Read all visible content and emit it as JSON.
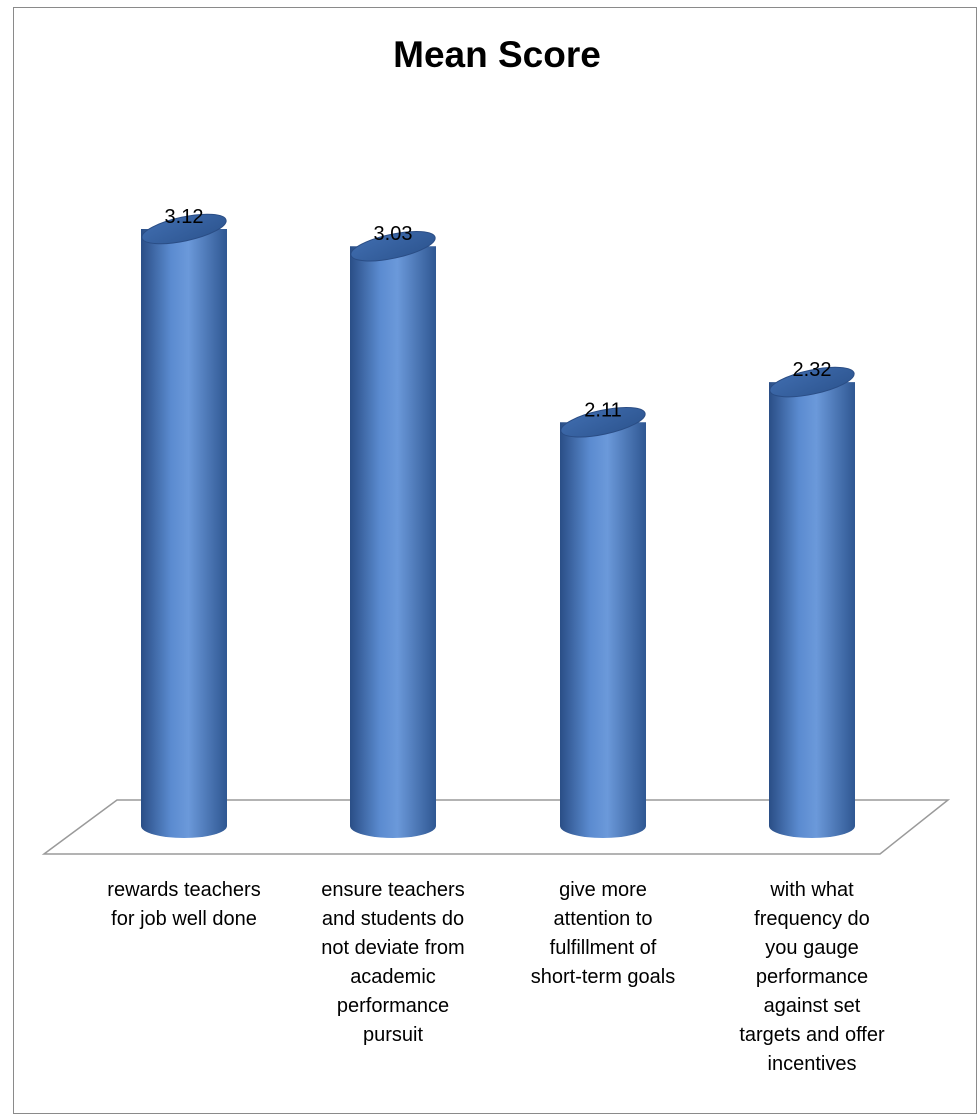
{
  "chart_data": {
    "type": "bar",
    "style": "3d-cylinder",
    "title": "Mean Score",
    "categories": [
      "rewards teachers\nfor job well done",
      "ensure teachers\nand students do\nnot deviate from\nacademic\nperformance\npursuit",
      "give more\nattention to\nfulfillment of\nshort-term goals",
      "with what\nfrequency do\nyou gauge\nperformance\nagainst set\ntargets and offer\nincentives"
    ],
    "values": [
      3.12,
      3.03,
      2.11,
      2.32
    ],
    "value_labels": [
      "3.12",
      "3.03",
      "2.11",
      "2.32"
    ],
    "ylim": [
      0,
      3.75
    ],
    "grid": false,
    "legend": "none",
    "bar_color": "#4f81bd"
  }
}
